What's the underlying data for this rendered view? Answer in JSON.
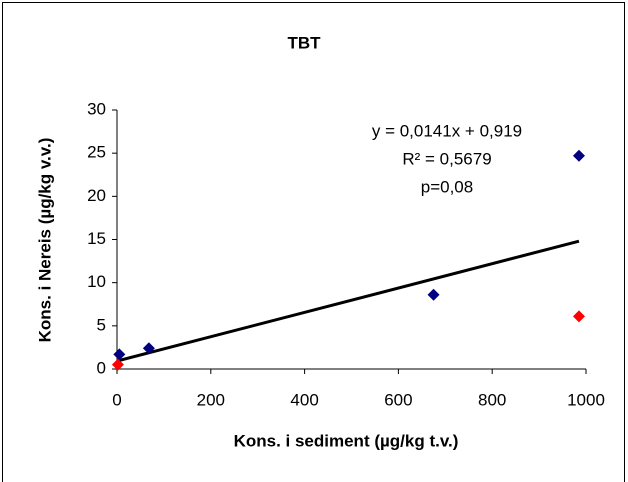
{
  "chart_data": {
    "type": "scatter",
    "title": "TBT",
    "x_label": "Kons. i sediment (µg/kg t.v.)",
    "y_label": "Kons. i Nereis (µg/kg v.v.)",
    "xlim": [
      0,
      1000
    ],
    "xticks": [
      0,
      200,
      400,
      600,
      800,
      1000
    ],
    "ylim": [
      0,
      30
    ],
    "yticks": [
      0,
      5,
      10,
      15,
      20,
      25,
      30
    ],
    "grid": false,
    "series": [
      {
        "color": "#000080",
        "x": [
          5,
          68,
          675,
          985
        ],
        "values": [
          1.7,
          2.4,
          8.6,
          24.7
        ]
      },
      {
        "color": "#ff0000",
        "x": [
          2,
          985
        ],
        "values": [
          0.5,
          6.1
        ]
      }
    ],
    "trendline": {
      "color": "#000000",
      "x": [
        0,
        985
      ],
      "values": [
        0.919,
        14.8075
      ]
    },
    "annotations": [
      "y = 0,0141x + 0,919",
      "R² = 0,5679",
      "p=0,08"
    ]
  }
}
